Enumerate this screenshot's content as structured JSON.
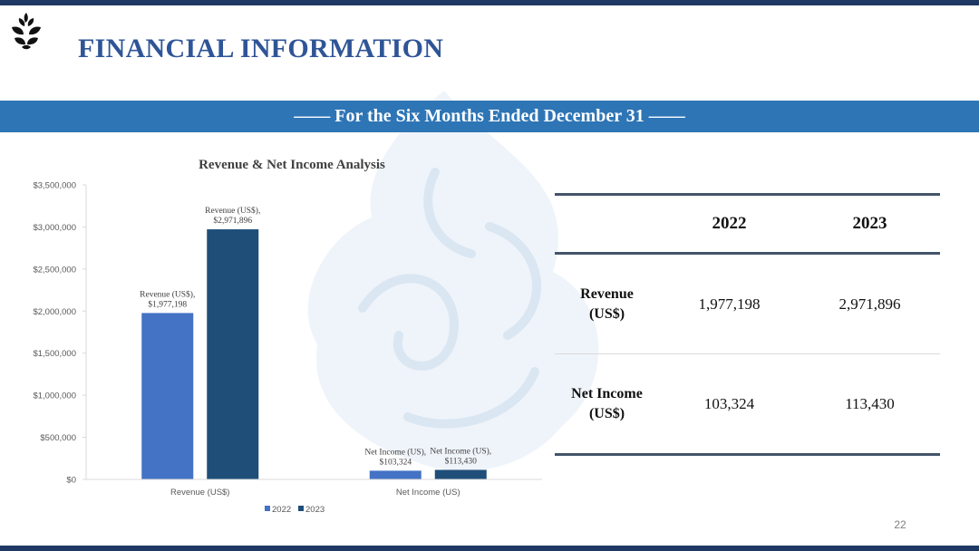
{
  "slide": {
    "title": "FINANCIAL INFORMATION",
    "banner_text": "—— For the Six Months Ended December 31 ——",
    "page_number": "22",
    "colors": {
      "title": "#2f5597",
      "banner": "#2e75b6",
      "border": "#1f3864"
    }
  },
  "chart_data": {
    "type": "bar",
    "title": "Revenue & Net Income Analysis",
    "categories": [
      "Revenue (US$)",
      "Net Income (US)"
    ],
    "series": [
      {
        "name": "2022",
        "color": "#4472c4",
        "values": [
          1977198,
          103324
        ],
        "labels": [
          [
            "Revenue (US$),",
            "$1,977,198"
          ],
          [
            "Net Income (US),",
            "$103,324"
          ]
        ]
      },
      {
        "name": "2023",
        "color": "#1f4e79",
        "values": [
          2971896,
          113430
        ],
        "labels": [
          [
            "Revenue (US$),",
            "$2,971,896"
          ],
          [
            "Net Income (US),",
            "$113,430"
          ]
        ]
      }
    ],
    "yticks": [
      "$0",
      "$500,000",
      "$1,000,000",
      "$1,500,000",
      "$2,000,000",
      "$2,500,000",
      "$3,000,000",
      "$3,500,000"
    ],
    "ylim": [
      0,
      3500000
    ],
    "xlabel": "",
    "ylabel": "",
    "grid": false,
    "legend_position": "bottom"
  },
  "table": {
    "headers": [
      "",
      "2022",
      "2023"
    ],
    "rows": [
      {
        "label": [
          "Revenue",
          "(US$)"
        ],
        "values": [
          "1,977,198",
          "2,971,896"
        ]
      },
      {
        "label": [
          "Net Income",
          "(US$)"
        ],
        "values": [
          "103,324",
          "113,430"
        ]
      }
    ]
  }
}
